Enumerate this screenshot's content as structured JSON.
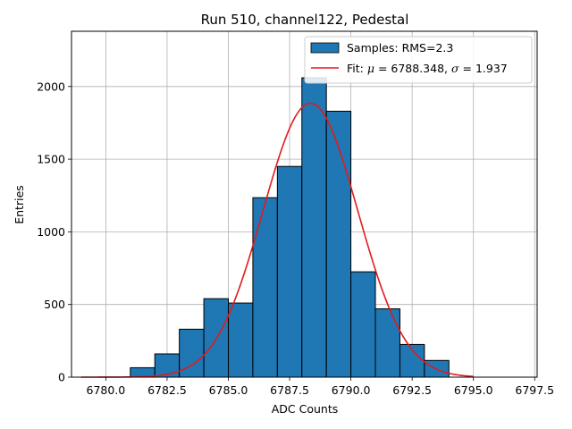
{
  "chart_data": {
    "type": "bar",
    "title": "Run 510, channel122, Pedestal",
    "xlabel": "ADC Counts",
    "ylabel": "Entries",
    "xlim": [
      6778.6,
      6797.6
    ],
    "ylim": [
      0,
      2380
    ],
    "xticks": [
      6780.0,
      6782.5,
      6785.0,
      6787.5,
      6790.0,
      6792.5,
      6795.0,
      6797.5
    ],
    "xtick_labels": [
      "6780.0",
      "6782.5",
      "6785.0",
      "6787.5",
      "6790.0",
      "6792.5",
      "6795.0",
      "6797.5"
    ],
    "yticks": [
      0,
      500,
      1000,
      1500,
      2000
    ],
    "ytick_labels": [
      "0",
      "500",
      "1000",
      "1500",
      "2000"
    ],
    "grid": true,
    "legend_position": "top-right",
    "histogram": {
      "name": "Samples: RMS=2.3",
      "color": "#1f77b4",
      "bin_edges": [
        6781,
        6782,
        6783,
        6784,
        6785,
        6786,
        6787,
        6788,
        6789,
        6790,
        6791,
        6792,
        6793,
        6794
      ],
      "counts": [
        65,
        160,
        330,
        540,
        510,
        1235,
        1450,
        2060,
        1830,
        725,
        470,
        225,
        115
      ]
    },
    "fit": {
      "name_prefix": "Fit: ",
      "name_mu_sym": "μ",
      "name_mid": " = 6788.348, ",
      "name_sigma_sym": "σ",
      "name_suffix": " = 1.937",
      "color": "#e31a1c",
      "mu": 6788.348,
      "sigma": 1.937,
      "amplitude": 1885,
      "x_range": [
        6779,
        6795
      ]
    }
  }
}
